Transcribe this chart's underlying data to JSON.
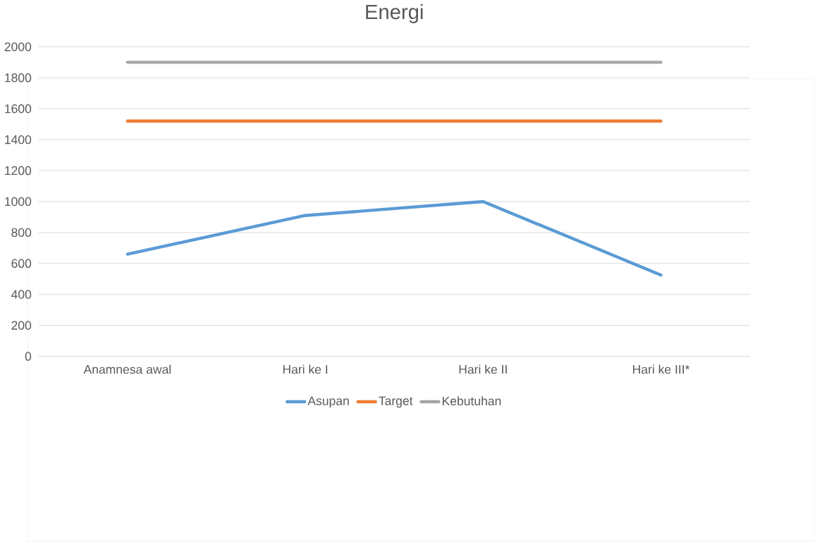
{
  "chart_data": {
    "type": "line",
    "title": "Energi",
    "categories": [
      "Anamnesa awal",
      "Hari ke I",
      "Hari ke II",
      "Hari ke III*"
    ],
    "series": [
      {
        "name": "Asupan",
        "color": "#5b9bd5",
        "values": [
          660,
          910,
          1000,
          525
        ]
      },
      {
        "name": "Target",
        "color": "#ed7d31",
        "values": [
          1520,
          1520,
          1520,
          1520
        ]
      },
      {
        "name": "Kebutuhan",
        "color": "#a5a5a5",
        "values": [
          1900,
          1900,
          1900,
          1900
        ]
      }
    ],
    "ylim": [
      0,
      2000
    ],
    "yticks": [
      0,
      200,
      400,
      600,
      800,
      1000,
      1200,
      1400,
      1600,
      1800,
      2000
    ],
    "grid": "y",
    "legend": "bottom",
    "marker": "none",
    "line_style": "solid"
  }
}
